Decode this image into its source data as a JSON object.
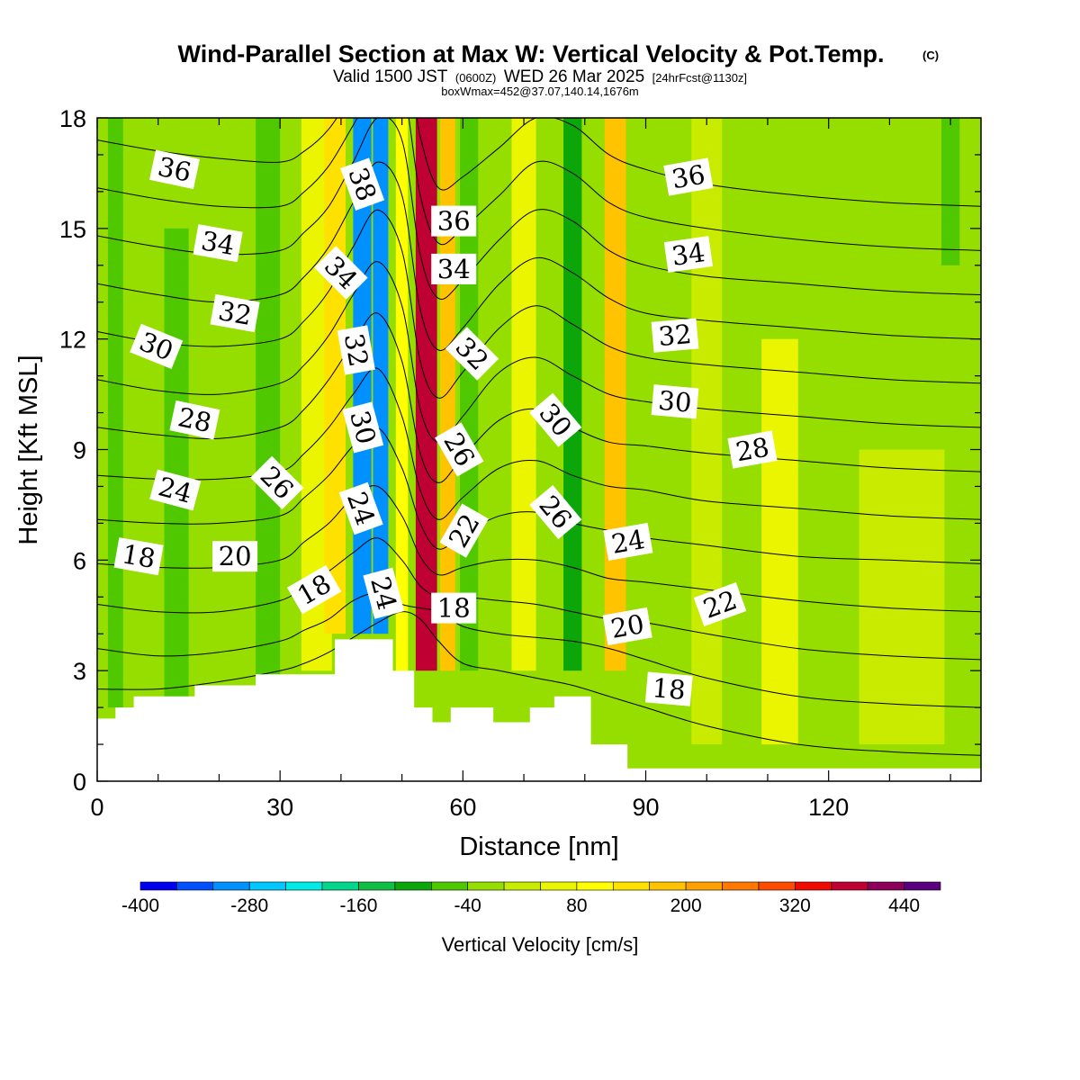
{
  "header": {
    "title": "Wind-Parallel Section at Max W: Vertical Velocity & Pot.Temp.",
    "copyright": "(C)",
    "valid_prefix": "Valid 1500 JST",
    "valid_zulu": "(0600Z)",
    "valid_date": "WED 26 Mar 2025",
    "forecast": "[24hrFcst@1130z]",
    "boxwmax": "boxWmax=452@37.07,140.14,1676m"
  },
  "chart_data": {
    "type": "heatmap",
    "xlabel": "Distance [nm]",
    "ylabel": "Height [Kft MSL]",
    "xlim": [
      0,
      145
    ],
    "ylim": [
      0,
      18
    ],
    "x_ticks": [
      "0",
      "30",
      "60",
      "90",
      "120"
    ],
    "y_ticks": [
      "0",
      "3",
      "6",
      "9",
      "12",
      "15",
      "18"
    ],
    "x_tick_values": [
      0,
      30,
      60,
      90,
      120
    ],
    "y_tick_values": [
      0,
      3,
      6,
      9,
      12,
      15,
      18
    ],
    "background_level": -20,
    "velocity_bands": [
      {
        "x": 3,
        "width": 2.5,
        "w": -50,
        "z0": 2,
        "z1": 18
      },
      {
        "x": 13,
        "width": 4,
        "w": -50,
        "z0": 2,
        "z1": 15
      },
      {
        "x": 28,
        "width": 4,
        "w": -60,
        "z0": 2,
        "z1": 18
      },
      {
        "x": 36,
        "width": 5,
        "w": 60,
        "z0": 3,
        "z1": 18
      },
      {
        "x": 39,
        "width": 3.5,
        "w": 120,
        "z0": 4,
        "z1": 18
      },
      {
        "x": 43.5,
        "width": 3,
        "w": -300,
        "z0": 4,
        "z1": 18
      },
      {
        "x": 46.5,
        "width": 2.5,
        "w": -320,
        "z0": 4,
        "z1": 18
      },
      {
        "x": 50,
        "width": 2,
        "w": 80,
        "z0": 3,
        "z1": 18
      },
      {
        "x": 54,
        "width": 3.5,
        "w": 360,
        "z0": 3,
        "z1": 18
      },
      {
        "x": 57.5,
        "width": 2.5,
        "w": 160,
        "z0": 3,
        "z1": 18
      },
      {
        "x": 61,
        "width": 3,
        "w": -80,
        "z0": 3,
        "z1": 18
      },
      {
        "x": 70,
        "width": 4,
        "w": 40,
        "z0": 3,
        "z1": 18
      },
      {
        "x": 78,
        "width": 3,
        "w": -110,
        "z0": 3,
        "z1": 18
      },
      {
        "x": 85,
        "width": 3.5,
        "w": 170,
        "z0": 3,
        "z1": 18
      },
      {
        "x": 92.5,
        "width": 3,
        "w": -40,
        "z0": 3,
        "z1": 18
      },
      {
        "x": 100,
        "width": 5,
        "w": 20,
        "z0": 1,
        "z1": 18
      },
      {
        "x": 112,
        "width": 6,
        "w": 40,
        "z0": 1,
        "z1": 12
      },
      {
        "x": 132,
        "width": 14,
        "w": 35,
        "z0": 1,
        "z1": 9
      },
      {
        "x": 140,
        "width": 3,
        "w": -70,
        "z0": 14,
        "z1": 18
      }
    ],
    "terrain": {
      "x": [
        0,
        3,
        3,
        6,
        6,
        16,
        16,
        26,
        26,
        39,
        39,
        48.5,
        48.5,
        52,
        52,
        55,
        55,
        58,
        58,
        65,
        65,
        71,
        71,
        75,
        75,
        81,
        81,
        87,
        87,
        145
      ],
      "z": [
        1.7,
        1.7,
        2.0,
        2.0,
        2.3,
        2.3,
        2.6,
        2.6,
        2.9,
        2.9,
        3.85,
        3.85,
        3.0,
        3.0,
        2.0,
        2.0,
        1.6,
        1.6,
        2.0,
        2.0,
        1.6,
        1.6,
        2.0,
        2.0,
        2.3,
        2.3,
        1.0,
        1.0,
        0.35,
        0.35
      ]
    },
    "isentropes": {
      "x": [
        0,
        10,
        20,
        30,
        34,
        38,
        42,
        46,
        50,
        53,
        56,
        60,
        66,
        72,
        78,
        84,
        90,
        100,
        115,
        130,
        145
      ],
      "z": [
        [
          2.5,
          2.5,
          2.7,
          3.0,
          3.2,
          3.5,
          3.9,
          4.3,
          4.6,
          4.4,
          3.8,
          3.2,
          3.0,
          2.8,
          2.6,
          2.3,
          2.0,
          1.5,
          1.0,
          0.8,
          0.7
        ],
        [
          3.6,
          3.4,
          3.5,
          3.8,
          4.1,
          4.4,
          4.9,
          5.1,
          4.8,
          4.7,
          4.6,
          4.2,
          4.0,
          3.9,
          3.8,
          3.6,
          3.3,
          2.8,
          2.3,
          2.1,
          2.0
        ],
        [
          4.8,
          4.6,
          4.6,
          4.9,
          5.3,
          5.7,
          6.2,
          6.6,
          6.0,
          5.3,
          5.0,
          5.0,
          4.9,
          4.8,
          4.6,
          4.4,
          4.3,
          4.0,
          3.6,
          3.4,
          3.3
        ],
        [
          5.9,
          5.8,
          5.8,
          6.0,
          6.5,
          7.0,
          7.7,
          8.0,
          7.2,
          6.1,
          5.6,
          5.8,
          6.0,
          6.0,
          5.8,
          5.5,
          5.4,
          5.2,
          4.9,
          4.7,
          4.6
        ],
        [
          7.1,
          7.0,
          7.0,
          7.2,
          7.7,
          8.3,
          9.1,
          9.6,
          8.5,
          7.0,
          6.3,
          6.7,
          7.2,
          7.3,
          7.0,
          6.8,
          6.6,
          6.4,
          6.1,
          6.0,
          5.9
        ],
        [
          8.3,
          8.2,
          8.2,
          8.4,
          8.9,
          9.6,
          10.5,
          11.2,
          9.9,
          7.9,
          7.1,
          7.7,
          8.5,
          8.7,
          8.3,
          8.0,
          7.9,
          7.6,
          7.4,
          7.2,
          7.1
        ],
        [
          9.6,
          9.4,
          9.3,
          9.6,
          10.1,
          10.9,
          11.9,
          12.7,
          11.4,
          8.9,
          8.1,
          8.8,
          9.8,
          10.1,
          9.6,
          9.2,
          9.1,
          8.9,
          8.7,
          8.5,
          8.4
        ],
        [
          10.9,
          10.6,
          10.5,
          10.8,
          11.3,
          12.1,
          13.2,
          14.1,
          12.9,
          10.1,
          9.2,
          9.9,
          11.1,
          11.5,
          11.0,
          10.5,
          10.3,
          10.1,
          9.9,
          9.7,
          9.6
        ],
        [
          12.2,
          11.9,
          11.8,
          12.0,
          12.5,
          13.3,
          14.5,
          15.5,
          14.4,
          11.4,
          10.4,
          11.1,
          12.3,
          12.9,
          12.4,
          11.8,
          11.5,
          11.3,
          11.1,
          10.9,
          10.8
        ],
        [
          13.5,
          13.2,
          13.0,
          13.2,
          13.7,
          14.5,
          15.7,
          16.8,
          15.9,
          12.8,
          11.7,
          12.3,
          13.5,
          14.2,
          13.8,
          13.1,
          12.7,
          12.5,
          12.3,
          12.1,
          12.0
        ],
        [
          14.8,
          14.5,
          14.3,
          14.4,
          14.9,
          15.6,
          16.8,
          18.0,
          17.4,
          14.3,
          13.1,
          13.6,
          14.7,
          15.5,
          15.2,
          14.4,
          14.0,
          13.7,
          13.5,
          13.3,
          13.2
        ],
        [
          16.1,
          15.8,
          15.6,
          15.6,
          16.0,
          16.7,
          17.8,
          18.9,
          18.9,
          15.9,
          14.6,
          15.0,
          15.9,
          16.8,
          16.5,
          15.7,
          15.3,
          15.0,
          14.7,
          14.5,
          14.4
        ],
        [
          17.4,
          17.1,
          16.9,
          16.8,
          17.1,
          17.7,
          18.7,
          19.8,
          20.2,
          17.5,
          16.1,
          16.4,
          17.2,
          18.0,
          17.8,
          17.0,
          16.6,
          16.2,
          15.9,
          15.7,
          15.6
        ]
      ]
    },
    "contour_labels": [
      {
        "text": "36",
        "x": 12.7,
        "z": 16.6,
        "rot": 12
      },
      {
        "text": "34",
        "x": 19.8,
        "z": 14.6,
        "rot": 10
      },
      {
        "text": "32",
        "x": 22.6,
        "z": 12.7,
        "rot": 10
      },
      {
        "text": "30",
        "x": 9.7,
        "z": 11.8,
        "rot": 22
      },
      {
        "text": "28",
        "x": 16.0,
        "z": 9.8,
        "rot": 12
      },
      {
        "text": "24",
        "x": 12.8,
        "z": 7.9,
        "rot": 15
      },
      {
        "text": "18",
        "x": 6.8,
        "z": 6.1,
        "rot": 10
      },
      {
        "text": "20",
        "x": 22.6,
        "z": 6.1,
        "rot": 0
      },
      {
        "text": "26",
        "x": 29.5,
        "z": 8.1,
        "rot": 45
      },
      {
        "text": "18",
        "x": 35.6,
        "z": 5.2,
        "rot": -30
      },
      {
        "text": "38",
        "x": 43.5,
        "z": 16.2,
        "rot": 70
      },
      {
        "text": "34",
        "x": 40.0,
        "z": 13.8,
        "rot": 45
      },
      {
        "text": "32",
        "x": 42.5,
        "z": 11.7,
        "rot": 80
      },
      {
        "text": "30",
        "x": 43.6,
        "z": 9.6,
        "rot": 75
      },
      {
        "text": "24",
        "x": 43.3,
        "z": 7.4,
        "rot": 70
      },
      {
        "text": "24",
        "x": 47.0,
        "z": 5.1,
        "rot": 75
      },
      {
        "text": "36",
        "x": 58.5,
        "z": 15.2,
        "rot": 0
      },
      {
        "text": "34",
        "x": 58.5,
        "z": 13.9,
        "rot": 0
      },
      {
        "text": "32",
        "x": 61.5,
        "z": 11.6,
        "rot": 45
      },
      {
        "text": "26",
        "x": 59.4,
        "z": 9.0,
        "rot": 60
      },
      {
        "text": "22",
        "x": 60.2,
        "z": 6.8,
        "rot": -60
      },
      {
        "text": "18",
        "x": 58.5,
        "z": 4.7,
        "rot": 0
      },
      {
        "text": "30",
        "x": 75.2,
        "z": 9.8,
        "rot": 50
      },
      {
        "text": "26",
        "x": 75.2,
        "z": 7.3,
        "rot": 50
      },
      {
        "text": "24",
        "x": 87.1,
        "z": 6.5,
        "rot": -10
      },
      {
        "text": "20",
        "x": 87.0,
        "z": 4.2,
        "rot": -10
      },
      {
        "text": "18",
        "x": 93.8,
        "z": 2.5,
        "rot": 5
      },
      {
        "text": "36",
        "x": 97.0,
        "z": 16.4,
        "rot": -10
      },
      {
        "text": "34",
        "x": 97.0,
        "z": 14.3,
        "rot": -8
      },
      {
        "text": "32",
        "x": 94.8,
        "z": 12.1,
        "rot": -5
      },
      {
        "text": "30",
        "x": 94.8,
        "z": 10.3,
        "rot": 5
      },
      {
        "text": "28",
        "x": 107.5,
        "z": 9.0,
        "rot": -10
      },
      {
        "text": "22",
        "x": 102.2,
        "z": 4.8,
        "rot": -20
      }
    ],
    "colorbar": {
      "label": "Vertical Velocity [cm/s]",
      "tick_labels": [
        "-400",
        "-280",
        "-160",
        "-40",
        "80",
        "200",
        "320",
        "440"
      ],
      "tick_values": [
        -400,
        -280,
        -160,
        -40,
        80,
        200,
        320,
        440
      ],
      "levels": [
        -400,
        -360,
        -320,
        -280,
        -240,
        -200,
        -160,
        -120,
        -80,
        -40,
        0,
        40,
        80,
        120,
        160,
        200,
        240,
        280,
        320,
        360,
        400,
        440,
        480
      ],
      "colors": [
        "#0000f0",
        "#0050ff",
        "#0090ff",
        "#00c8ff",
        "#00ebe6",
        "#00d78c",
        "#10be46",
        "#0ca50a",
        "#50c800",
        "#96de00",
        "#c8eb00",
        "#ebf500",
        "#ffff00",
        "#ffe100",
        "#ffc300",
        "#ffa000",
        "#ff7800",
        "#ff4b00",
        "#f00a00",
        "#be0032",
        "#8c005a",
        "#5a007e"
      ]
    }
  }
}
